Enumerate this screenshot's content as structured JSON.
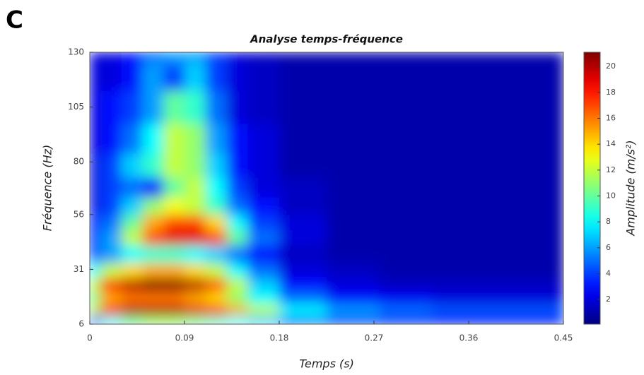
{
  "panel_label": "C",
  "chart_data": {
    "type": "heatmap",
    "title": "Analyse temps-fréquence",
    "x_label": "Temps (s)",
    "y_label": "Fréquence (Hz)",
    "colorbar_label": "Amplitude (m/s²)",
    "colormap": "jet",
    "x": [
      0,
      0.02,
      0.04,
      0.06,
      0.08,
      0.1,
      0.12,
      0.14,
      0.16,
      0.2,
      0.25,
      0.3,
      0.35,
      0.4,
      0.45
    ],
    "y": [
      8,
      12,
      18,
      24,
      30,
      38,
      46,
      52,
      60,
      68,
      78,
      90,
      105,
      120,
      130
    ],
    "z": [
      [
        4,
        8,
        10,
        11,
        11,
        10,
        9,
        8,
        7,
        5,
        4,
        3.5,
        3,
        3,
        3
      ],
      [
        12,
        18,
        20,
        20,
        20,
        19,
        18,
        15,
        12,
        8,
        6,
        5,
        4.5,
        4.5,
        4.5
      ],
      [
        10,
        15,
        16,
        16,
        16,
        15,
        14,
        11,
        8,
        5,
        3,
        2.5,
        2,
        2,
        2
      ],
      [
        12,
        18,
        20,
        21,
        21,
        20,
        17,
        12,
        7,
        3,
        2,
        1.5,
        1.5,
        1.5,
        1.5
      ],
      [
        8,
        12,
        14,
        15,
        15,
        14,
        12,
        8,
        5,
        2,
        1.5,
        1,
        1,
        1,
        1
      ],
      [
        4,
        6,
        8,
        9,
        9,
        8,
        7,
        5,
        3,
        1.5,
        1,
        1,
        1,
        1,
        1
      ],
      [
        3,
        6,
        12,
        17,
        19,
        19,
        17,
        10,
        5,
        2,
        1,
        1,
        1,
        1,
        1
      ],
      [
        3,
        5,
        10,
        15,
        17,
        17,
        14,
        8,
        4,
        2,
        1,
        1,
        1,
        1,
        1
      ],
      [
        2,
        4,
        7,
        11,
        13,
        12,
        9,
        5,
        3,
        1.5,
        1,
        1,
        1,
        1,
        1
      ],
      [
        2,
        4,
        5,
        3,
        10,
        12,
        8,
        4,
        2,
        1.5,
        1,
        1,
        1,
        1,
        1
      ],
      [
        2,
        4,
        7,
        9,
        12,
        11,
        7,
        3,
        2,
        1,
        1,
        1,
        1,
        1,
        1
      ],
      [
        2,
        3,
        5,
        8,
        12,
        11,
        6,
        3,
        2,
        1,
        1,
        1,
        1,
        1,
        1
      ],
      [
        2,
        3,
        4,
        6,
        10,
        9,
        5,
        2,
        1.5,
        1,
        1,
        1,
        1,
        1,
        1
      ],
      [
        2,
        2,
        3,
        6,
        4,
        7,
        4,
        2,
        1.5,
        1,
        1,
        1,
        1,
        1,
        1
      ],
      [
        2,
        2,
        3,
        5,
        6,
        6,
        4,
        2,
        1.5,
        1,
        1,
        1,
        1,
        1,
        1
      ]
    ],
    "xlim": [
      0,
      0.45
    ],
    "xticks": [
      0,
      0.09,
      0.18,
      0.27,
      0.36,
      0.45
    ],
    "ylim": [
      6,
      130
    ],
    "yticks": [
      6,
      31,
      56,
      80,
      105,
      130
    ],
    "clim": [
      0.1,
      21.1
    ],
    "cticks": [
      2,
      4,
      6,
      8,
      10,
      12,
      14,
      16,
      18,
      20
    ]
  }
}
